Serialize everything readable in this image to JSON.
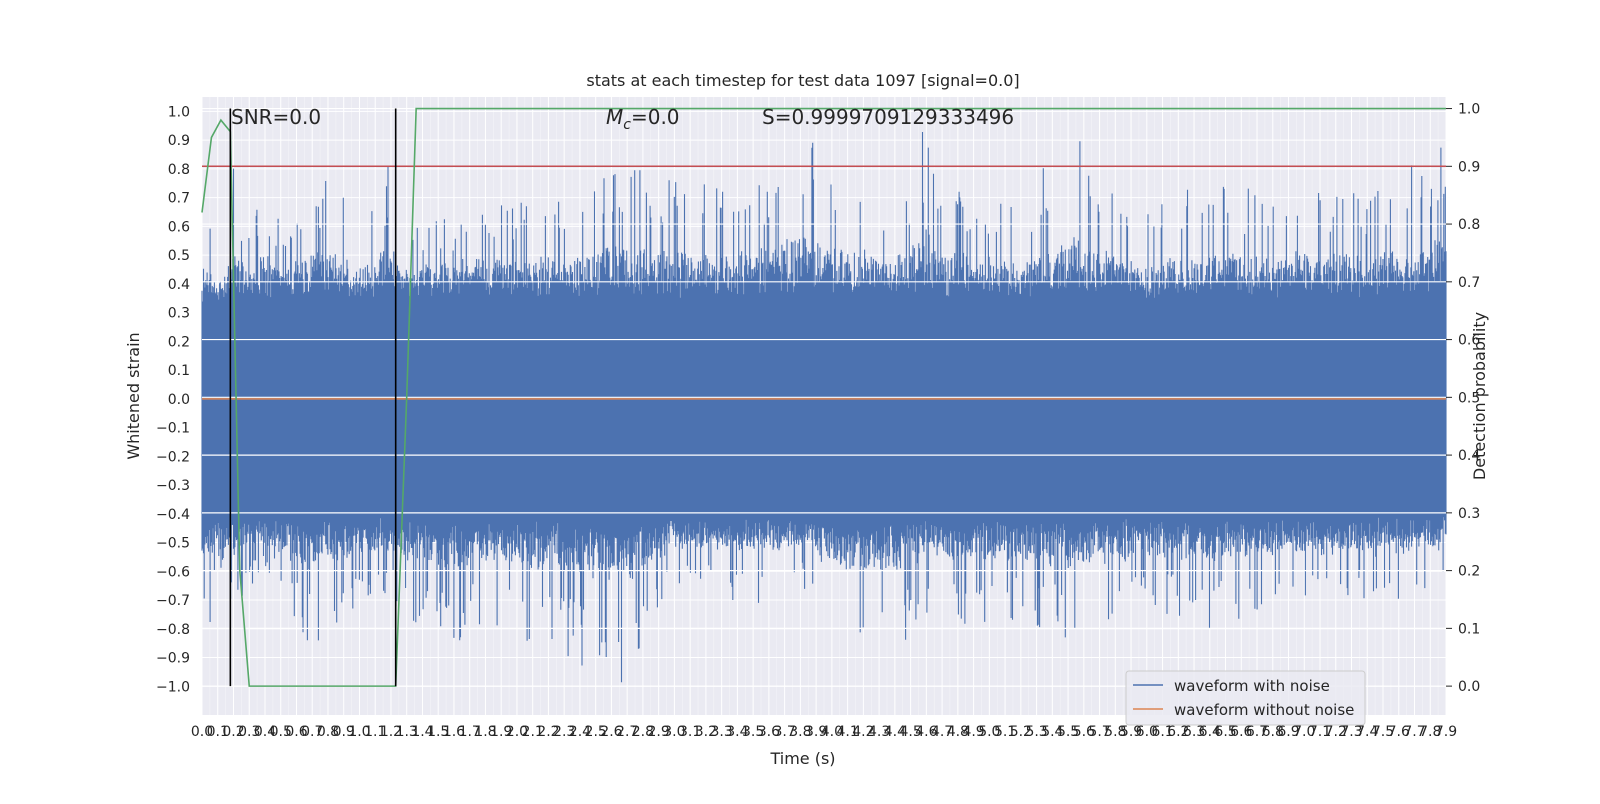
{
  "chart_data": {
    "type": "line",
    "title": "stats at each timestep for test data 1097 [signal=0.0]",
    "xlabel": "Time (s)",
    "ylabel": "Whitened strain",
    "y2label": "Detection probability",
    "xlim": [
      0,
      7.9
    ],
    "ylim": [
      -1.1,
      1.05
    ],
    "y2lim": [
      -0.05,
      1.02
    ],
    "x_ticks": [
      0.0,
      0.1,
      0.2,
      0.3,
      0.4,
      0.5,
      0.6,
      0.7,
      0.8,
      0.9,
      1.0,
      1.1,
      1.2,
      1.3,
      1.4,
      1.5,
      1.6,
      1.7,
      1.8,
      1.9,
      2.0,
      2.1,
      2.2,
      2.3,
      2.4,
      2.5,
      2.6,
      2.7,
      2.8,
      2.9,
      3.0,
      3.1,
      3.2,
      3.3,
      3.4,
      3.5,
      3.6,
      3.7,
      3.8,
      3.9,
      4.0,
      4.1,
      4.2,
      4.3,
      4.4,
      4.5,
      4.6,
      4.7,
      4.8,
      4.9,
      5.0,
      5.1,
      5.2,
      5.3,
      5.4,
      5.5,
      5.6,
      5.7,
      5.8,
      5.9,
      6.0,
      6.1,
      6.2,
      6.3,
      6.4,
      6.5,
      6.6,
      6.7,
      6.8,
      6.9,
      7.0,
      7.1,
      7.2,
      7.3,
      7.4,
      7.5,
      7.6,
      7.7,
      7.8,
      7.9
    ],
    "y_ticks": [
      1.0,
      0.9,
      0.8,
      0.7,
      0.6,
      0.5,
      0.4,
      0.3,
      0.2,
      0.1,
      0.0,
      -0.1,
      -0.2,
      -0.3,
      -0.4,
      -0.5,
      -0.6,
      -0.7,
      -0.8,
      -0.9,
      -1.0
    ],
    "y_tick_labels": [
      "1.0",
      "0.9",
      "0.8",
      "0.7",
      "0.6",
      "0.5",
      "0.4",
      "0.3",
      "0.2",
      "0.1",
      "0.0",
      "−0.1",
      "−0.2",
      "−0.3",
      "−0.4",
      "−0.5",
      "−0.6",
      "−0.7",
      "−0.8",
      "−0.9",
      "−1.0"
    ],
    "y2_ticks": [
      1.0,
      0.9,
      0.8,
      0.7,
      0.6,
      0.5,
      0.4,
      0.3,
      0.2,
      0.1,
      0.0
    ],
    "y2_tick_labels": [
      "1.0",
      "0.9",
      "0.8",
      "0.7",
      "0.6",
      "0.5",
      "0.4",
      "0.3",
      "0.2",
      "0.1",
      "0.0"
    ],
    "grid": true,
    "legend_position": "bottom-right",
    "annotations": {
      "snr": "SNR=0.0",
      "mc_symbol": "M",
      "mc_sub": "c",
      "mc_value": "=0.0",
      "s": "S=0.9999709129333496"
    },
    "vertical_markers_x": [
      0.18,
      1.23
    ],
    "threshold": {
      "axis": "right",
      "y": 0.9,
      "color": "#c44e52"
    },
    "series": [
      {
        "name": "waveform with noise",
        "axis": "left",
        "color": "#4c72b0",
        "envelope": {
          "x": [
            0.0,
            0.05,
            0.1,
            0.2,
            0.3,
            0.4,
            0.5,
            0.7,
            0.9,
            1.0,
            1.2,
            1.3,
            1.6,
            1.9,
            2.3,
            2.7,
            3.0,
            3.5,
            3.8,
            4.1,
            4.4,
            4.6,
            4.8,
            5.2,
            5.5,
            5.8,
            6.0,
            6.4,
            6.8,
            7.0,
            7.4,
            7.9
          ],
          "upper": [
            0.43,
            0.62,
            0.35,
            0.81,
            0.58,
            0.77,
            0.61,
            0.8,
            0.72,
            0.6,
            0.85,
            0.62,
            0.66,
            0.72,
            0.7,
            0.85,
            0.78,
            0.75,
            0.97,
            0.8,
            0.72,
            0.97,
            0.74,
            0.68,
            0.96,
            0.72,
            0.66,
            0.79,
            0.7,
            0.77,
            0.7,
            0.9
          ],
          "lower": [
            -0.8,
            -0.82,
            -0.55,
            -0.75,
            -0.66,
            -0.62,
            -0.71,
            -0.87,
            -0.8,
            -0.68,
            -0.7,
            -0.78,
            -0.85,
            -0.82,
            -0.9,
            -1.0,
            -0.66,
            -0.72,
            -0.66,
            -0.93,
            -0.9,
            -0.75,
            -0.8,
            -0.78,
            -0.84,
            -0.81,
            -0.73,
            -0.8,
            -0.74,
            -0.7,
            -0.73,
            -0.65
          ]
        }
      },
      {
        "name": "waveform without noise",
        "axis": "left",
        "color": "#dd8452",
        "x": [
          0.0,
          7.9
        ],
        "y": [
          0.0,
          0.0
        ]
      },
      {
        "name": "",
        "axis": "right",
        "color": "#55a868",
        "x": [
          0.0,
          0.06,
          0.12,
          0.18,
          0.24,
          0.3,
          1.17,
          1.23,
          1.3,
          1.36,
          7.9
        ],
        "y": [
          0.82,
          0.95,
          0.98,
          0.96,
          0.2,
          0.0,
          0.0,
          0.0,
          0.5,
          1.0,
          1.0
        ]
      }
    ]
  }
}
